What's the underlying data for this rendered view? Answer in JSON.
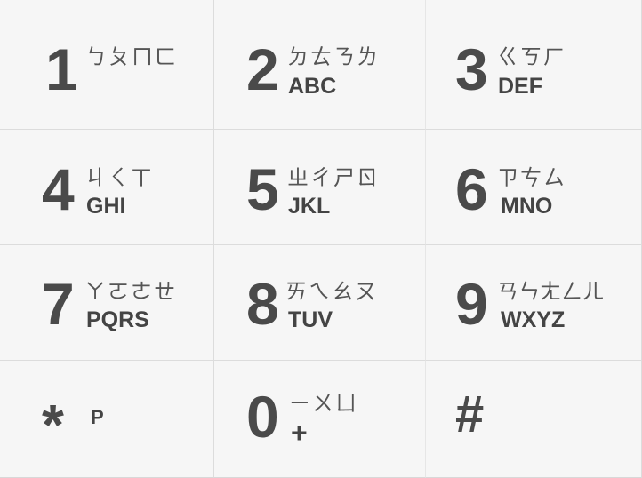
{
  "keypad": {
    "keys": [
      {
        "digit": "1",
        "zhuyin": "ㄅㄆㄇㄈ",
        "letters": ""
      },
      {
        "digit": "2",
        "zhuyin": "ㄉㄊㄋㄌ",
        "letters": "ABC"
      },
      {
        "digit": "3",
        "zhuyin": "ㄍㄎㄏ",
        "letters": "DEF"
      },
      {
        "digit": "4",
        "zhuyin": "ㄐㄑㄒ",
        "letters": "GHI"
      },
      {
        "digit": "5",
        "zhuyin": "ㄓㄔㄕㄖ",
        "letters": "JKL"
      },
      {
        "digit": "6",
        "zhuyin": "ㄗㄘㄙ",
        "letters": "MNO"
      },
      {
        "digit": "7",
        "zhuyin": "ㄚㄛㄜㄝ",
        "letters": "PQRS"
      },
      {
        "digit": "8",
        "zhuyin": "ㄞㄟㄠㄡ",
        "letters": "TUV"
      },
      {
        "digit": "9",
        "zhuyin": "ㄢㄣㄤㄥㄦ",
        "letters": "WXYZ"
      },
      {
        "digit": "*",
        "zhuyin": "",
        "letters": "P"
      },
      {
        "digit": "0",
        "zhuyin": "ㄧㄨㄩ",
        "letters": "+"
      },
      {
        "digit": "#",
        "zhuyin": "",
        "letters": ""
      }
    ]
  }
}
